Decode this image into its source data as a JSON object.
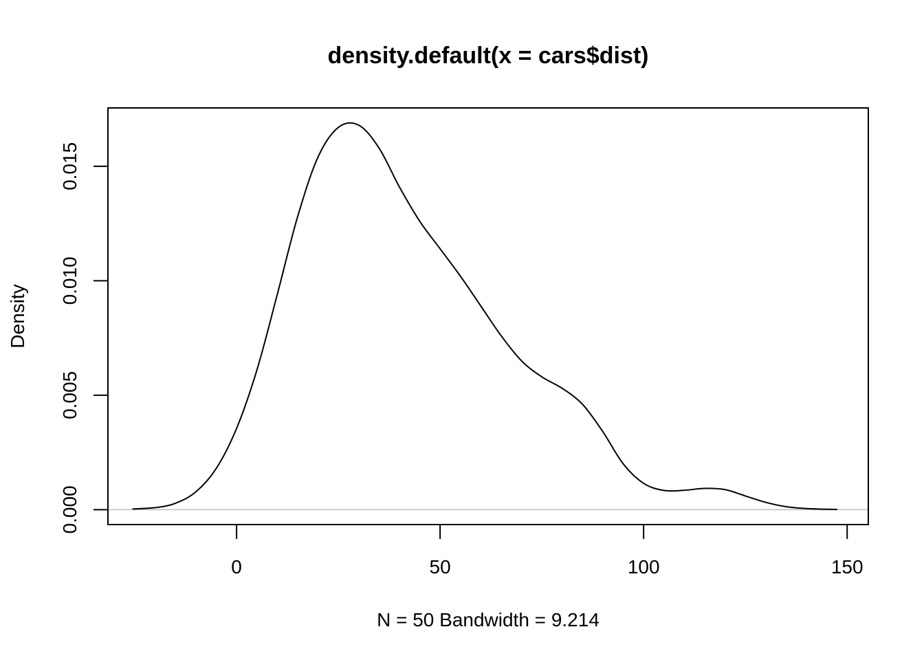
{
  "chart_data": {
    "type": "area",
    "title": "density.default(x = cars$dist)",
    "xlabel": "N = 50   Bandwidth = 9.214",
    "ylabel": "Density",
    "xlim": [
      -31.6,
      155.2
    ],
    "ylim": [
      -0.00065,
      0.01755
    ],
    "x_ticks": [
      0,
      50,
      100,
      150
    ],
    "x_tick_labels": [
      "0",
      "50",
      "100",
      "150"
    ],
    "y_ticks": [
      0.0,
      0.005,
      0.01,
      0.015
    ],
    "y_tick_labels": [
      "0.000",
      "0.005",
      "0.010",
      "0.015"
    ],
    "baseline": 0,
    "baseline_color": "#bebebe",
    "line_color": "#000000",
    "grid": false,
    "legend": "none",
    "series": [
      {
        "x": [
          -25.6,
          -20,
          -15,
          -10,
          -5,
          0,
          5,
          10,
          15,
          20,
          25,
          30,
          35,
          40,
          45,
          50,
          55,
          60,
          65,
          70,
          75,
          80,
          85,
          90,
          95,
          100,
          105,
          110,
          115,
          120,
          125,
          130,
          135,
          140,
          147.6
        ],
        "y": [
          3e-05,
          9e-05,
          0.00028,
          0.00078,
          0.0018,
          0.00355,
          0.0061,
          0.0094,
          0.0128,
          0.0154,
          0.0167,
          0.0168,
          0.0158,
          0.0141,
          0.0126,
          0.0114,
          0.0102,
          0.0089,
          0.0076,
          0.0065,
          0.0058,
          0.0053,
          0.0046,
          0.0034,
          0.002,
          0.00115,
          0.00084,
          0.00085,
          0.00093,
          0.00088,
          0.0006,
          0.00032,
          0.00013,
          5e-05,
          1e-05
        ]
      }
    ]
  }
}
